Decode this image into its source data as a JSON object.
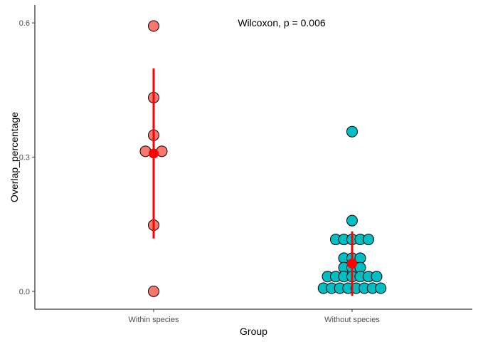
{
  "chart_data": {
    "type": "scatter",
    "subtype": "dotplot-with-mean-and-error",
    "xlabel": "Group",
    "ylabel": "Overlap_percentage",
    "categories": [
      "Within species",
      "Without species"
    ],
    "ylim": [
      -0.04,
      0.64
    ],
    "yticks": [
      0.0,
      0.3,
      0.6
    ],
    "ytick_labels": [
      "0.0",
      "0.3",
      "0.6"
    ],
    "grid": false,
    "annotation": "Wilcoxon, p = 0.006",
    "series": [
      {
        "category": "Within species",
        "color": "#F8766D",
        "points": [
          {
            "slot": 0,
            "y": 0.593
          },
          {
            "slot": 0,
            "y": 0.433
          },
          {
            "slot": 0,
            "y": 0.349
          },
          {
            "slot": -1,
            "y": 0.313
          },
          {
            "slot": 1,
            "y": 0.313
          },
          {
            "slot": 0,
            "y": 0.148
          },
          {
            "slot": 0,
            "y": 0.0
          }
        ],
        "mean": 0.308,
        "err_low": 0.118,
        "err_high": 0.498
      },
      {
        "category": "Without species",
        "color": "#00BFC4",
        "points": [
          {
            "slot": 0,
            "y": 0.357
          },
          {
            "slot": 0,
            "y": 0.158
          },
          {
            "slot": -2,
            "y": 0.116
          },
          {
            "slot": -1,
            "y": 0.116
          },
          {
            "slot": 0,
            "y": 0.116
          },
          {
            "slot": 1,
            "y": 0.116
          },
          {
            "slot": 2,
            "y": 0.116
          },
          {
            "slot": -1,
            "y": 0.074
          },
          {
            "slot": 0,
            "y": 0.074
          },
          {
            "slot": 1,
            "y": 0.074
          },
          {
            "slot": -1,
            "y": 0.053
          },
          {
            "slot": 0,
            "y": 0.053
          },
          {
            "slot": 1,
            "y": 0.053
          },
          {
            "slot": -3,
            "y": 0.033
          },
          {
            "slot": -2,
            "y": 0.033
          },
          {
            "slot": -1,
            "y": 0.033
          },
          {
            "slot": 0,
            "y": 0.033
          },
          {
            "slot": 1,
            "y": 0.033
          },
          {
            "slot": 2,
            "y": 0.033
          },
          {
            "slot": 3,
            "y": 0.033
          },
          {
            "slot": -3.5,
            "y": 0.007
          },
          {
            "slot": -2.5,
            "y": 0.007
          },
          {
            "slot": -1.5,
            "y": 0.007
          },
          {
            "slot": -0.5,
            "y": 0.007
          },
          {
            "slot": 0.5,
            "y": 0.007
          },
          {
            "slot": 1.5,
            "y": 0.007
          },
          {
            "slot": 2.5,
            "y": 0.007
          },
          {
            "slot": 3.5,
            "y": 0.007
          }
        ],
        "mean": 0.062,
        "err_low": -0.01,
        "err_high": 0.134
      }
    ],
    "summary_color": "#FF0000"
  }
}
